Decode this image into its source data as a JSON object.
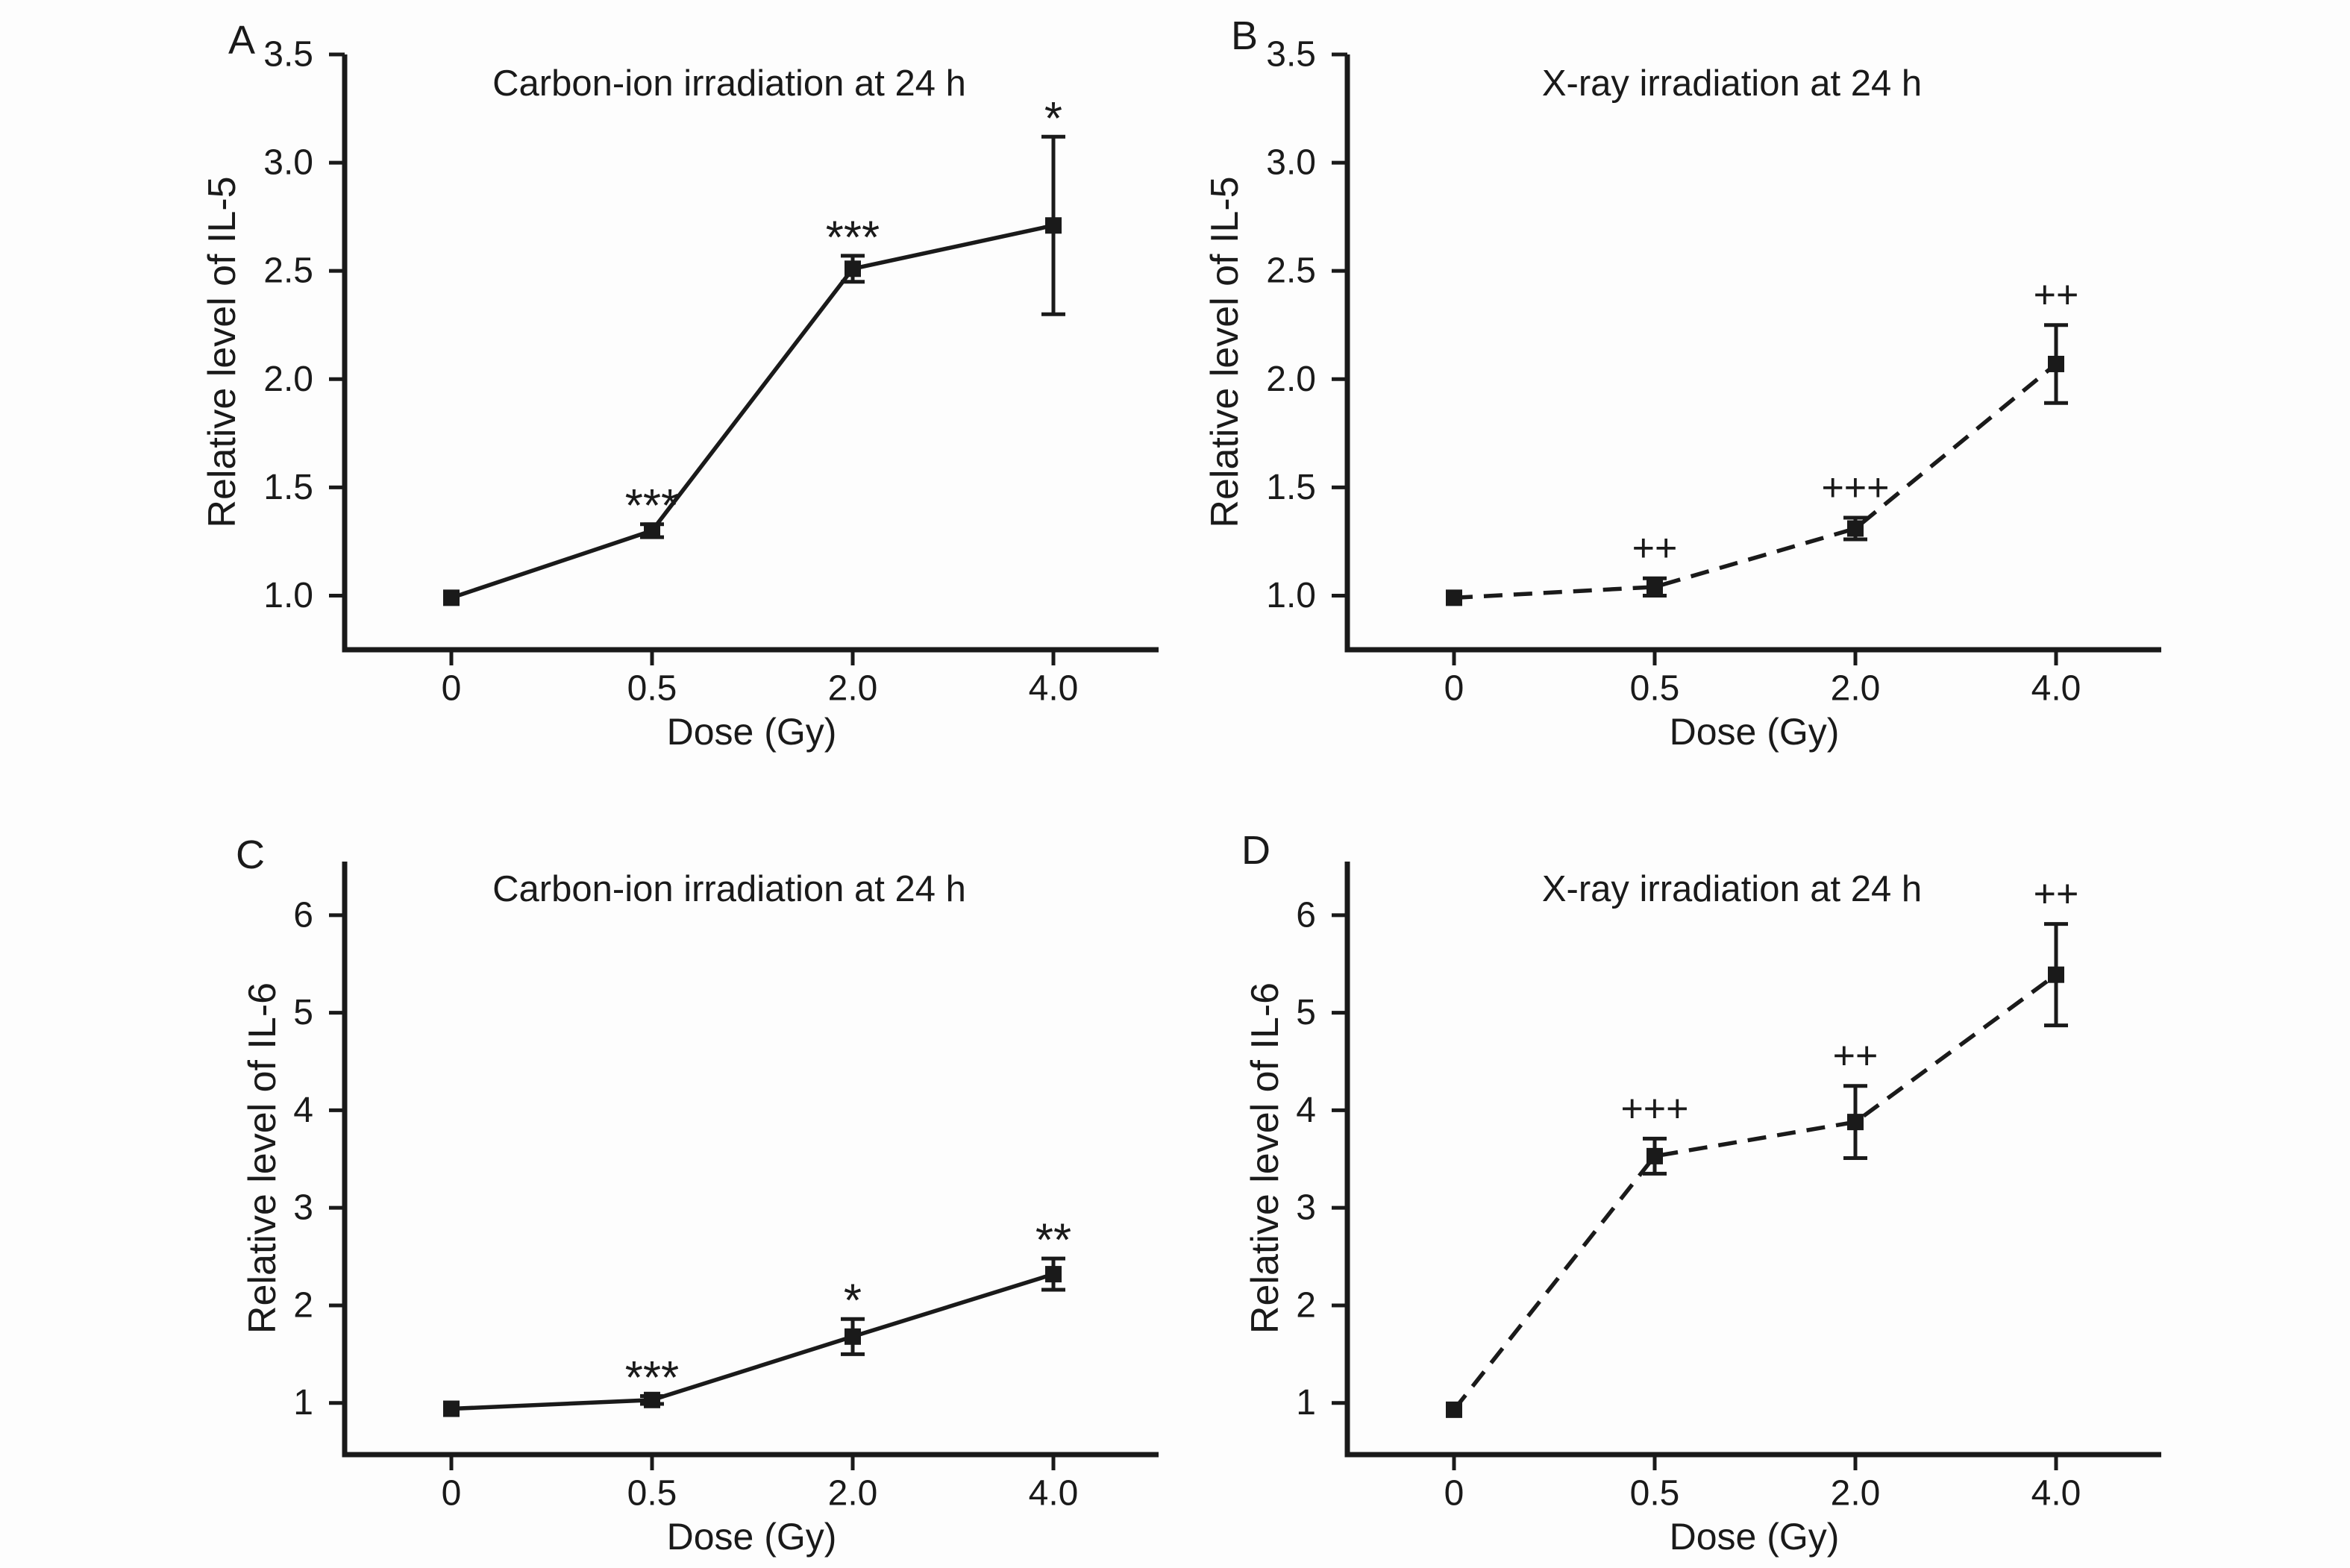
{
  "figure": {
    "background_color": "#fdfdfd",
    "ink_color": "#1a1a1a",
    "description": "Four-panel line figure of relative cytokine levels vs radiation dose"
  },
  "chart_data": [
    {
      "panel_letter": "A",
      "type": "line",
      "title": "Carbon-ion irradiation at 24 h",
      "xlabel": "Dose (Gy)",
      "ylabel": "Relative level of IL-5",
      "categories": [
        "0",
        "0.5",
        "2.0",
        "4.0"
      ],
      "x_numeric": [
        0,
        0.5,
        2.0,
        4.0
      ],
      "values": [
        0.99,
        1.3,
        2.51,
        2.71
      ],
      "errors": [
        0,
        0.03,
        0.06,
        0.41
      ],
      "annotations": [
        "",
        "***",
        "***",
        "*"
      ],
      "line_style": "solid",
      "marker": "filled-square",
      "ytick_labels": [
        "1.0",
        "1.5",
        "2.0",
        "2.5",
        "3.0",
        "3.5"
      ],
      "ytick_values": [
        1.0,
        1.5,
        2.0,
        2.5,
        3.0,
        3.5
      ],
      "ylim": [
        0.75,
        3.5
      ],
      "grid": false,
      "legend": null
    },
    {
      "panel_letter": "B",
      "type": "line",
      "title": "X-ray irradiation at 24 h",
      "xlabel": "Dose (Gy)",
      "ylabel": "Relative level of IL-5",
      "categories": [
        "0",
        "0.5",
        "2.0",
        "4.0"
      ],
      "x_numeric": [
        0,
        0.5,
        2.0,
        4.0
      ],
      "values": [
        0.99,
        1.04,
        1.31,
        2.07
      ],
      "errors": [
        0,
        0.04,
        0.05,
        0.18
      ],
      "annotations": [
        "",
        "++",
        "+++",
        "++"
      ],
      "line_style": "dashed",
      "marker": "filled-square",
      "ytick_labels": [
        "1.0",
        "1.5",
        "2.0",
        "2.5",
        "3.0",
        "3.5"
      ],
      "ytick_values": [
        1.0,
        1.5,
        2.0,
        2.5,
        3.0,
        3.5
      ],
      "ylim": [
        0.75,
        3.5
      ],
      "grid": false,
      "legend": null
    },
    {
      "panel_letter": "C",
      "type": "line",
      "title": "Carbon-ion irradiation at 24 h",
      "xlabel": "Dose (Gy)",
      "ylabel": "Relative level of IL-6",
      "categories": [
        "0",
        "0.5",
        "2.0",
        "4.0"
      ],
      "x_numeric": [
        0,
        0.5,
        2.0,
        4.0
      ],
      "values": [
        0.94,
        1.03,
        1.68,
        2.32
      ],
      "errors": [
        0,
        0.04,
        0.18,
        0.16
      ],
      "annotations": [
        "",
        "***",
        "*",
        "**"
      ],
      "line_style": "solid",
      "marker": "filled-square",
      "ytick_labels": [
        "1",
        "2",
        "3",
        "4",
        "5",
        "6"
      ],
      "ytick_values": [
        1,
        2,
        3,
        4,
        5,
        6
      ],
      "ylim": [
        0.47,
        6.55
      ],
      "grid": false,
      "legend": null
    },
    {
      "panel_letter": "D",
      "type": "line",
      "title": "X-ray irradiation at 24 h",
      "xlabel": "Dose (Gy)",
      "ylabel": "Relative level of IL-6",
      "categories": [
        "0",
        "0.5",
        "2.0",
        "4.0"
      ],
      "x_numeric": [
        0,
        0.5,
        2.0,
        4.0
      ],
      "values": [
        0.93,
        3.53,
        3.88,
        5.39
      ],
      "errors": [
        0,
        0.18,
        0.37,
        0.52
      ],
      "annotations": [
        "",
        "+++",
        "++",
        "++"
      ],
      "line_style": "dashed",
      "marker": "filled-square",
      "ytick_labels": [
        "1",
        "2",
        "3",
        "4",
        "5",
        "6"
      ],
      "ytick_values": [
        1,
        2,
        3,
        4,
        5,
        6
      ],
      "ylim": [
        0.47,
        6.55
      ],
      "grid": false,
      "legend": null
    }
  ]
}
